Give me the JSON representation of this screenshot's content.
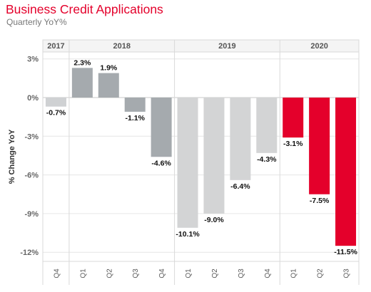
{
  "title": "Business Credit Applications",
  "subtitle": "Quarterly YoY%",
  "chart_data": {
    "type": "bar",
    "title": "Business Credit Applications",
    "subtitle": "Quarterly YoY%",
    "ylabel": "% Change YoY",
    "xlabel": "",
    "ylim": [
      -13.2,
      3.3
    ],
    "yticks": [
      3,
      0,
      -3,
      -6,
      -9,
      -12
    ],
    "ytick_labels": [
      "3%",
      "0%",
      "-3%",
      "-6%",
      "-9%",
      "-12%"
    ],
    "grid": "horizontal",
    "year_groups": [
      {
        "year": "2017",
        "quarters": [
          "Q4"
        ]
      },
      {
        "year": "2018",
        "quarters": [
          "Q1",
          "Q2",
          "Q3",
          "Q4"
        ]
      },
      {
        "year": "2019",
        "quarters": [
          "Q1",
          "Q2",
          "Q3",
          "Q4"
        ]
      },
      {
        "year": "2020",
        "quarters": [
          "Q1",
          "Q2",
          "Q3"
        ]
      }
    ],
    "categories": [
      "2017 Q4",
      "2018 Q1",
      "2018 Q2",
      "2018 Q3",
      "2018 Q4",
      "2019 Q1",
      "2019 Q2",
      "2019 Q3",
      "2019 Q4",
      "2020 Q1",
      "2020 Q2",
      "2020 Q3"
    ],
    "values": [
      -0.7,
      2.3,
      1.9,
      -1.1,
      -4.6,
      -10.1,
      -9.0,
      -6.4,
      -4.3,
      -3.1,
      -7.5,
      -11.5
    ],
    "value_labels": [
      "-0.7%",
      "2.3%",
      "1.9%",
      "-1.1%",
      "-4.6%",
      "-10.1%",
      "-9.0%",
      "-6.4%",
      "-4.3%",
      "-3.1%",
      "-7.5%",
      "-11.5%"
    ],
    "bar_colors": [
      "#cfd1d3",
      "#a5aaae",
      "#a5aaae",
      "#a5aaae",
      "#a5aaae",
      "#d3d4d5",
      "#d3d4d5",
      "#d3d4d5",
      "#d3d4d5",
      "#e4002b",
      "#e4002b",
      "#e4002b"
    ]
  }
}
